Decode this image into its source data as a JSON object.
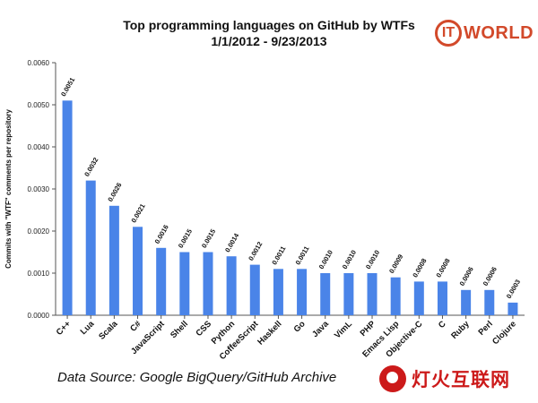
{
  "header": {
    "title_line1": "Top programming languages on GitHub by WTFs",
    "title_line2": "1/1/2012 - 9/23/2013"
  },
  "logo": {
    "mark": "IT",
    "text": "WORLD",
    "color": "#d2492a"
  },
  "footer": {
    "source": "Data Source: Google BigQuery/GitHub Archive"
  },
  "watermark": {
    "icon": "flame-logo-icon",
    "text": "灯火互联网",
    "color": "#cc1a1a"
  },
  "chart_data": {
    "type": "bar",
    "ylabel": "Commits with \"WTF\" comments per repository",
    "ylim": [
      0,
      0.006
    ],
    "yticks": [
      "0.0000",
      "0.0010",
      "0.0020",
      "0.0030",
      "0.0040",
      "0.0050",
      "0.0060"
    ],
    "grid": false,
    "bar_color": "#4a84e8",
    "categories": [
      "C++",
      "Lua",
      "Scala",
      "C#",
      "JavaScript",
      "Shell",
      "CSS",
      "Python",
      "CoffeeScript",
      "Haskell",
      "Go",
      "Java",
      "VimL",
      "PHP",
      "Emacs Lisp",
      "Objective-C",
      "C",
      "Ruby",
      "Perl",
      "Clojure"
    ],
    "values": [
      0.0051,
      0.0032,
      0.0026,
      0.0021,
      0.0016,
      0.0015,
      0.0015,
      0.0014,
      0.0012,
      0.0011,
      0.0011,
      0.001,
      0.001,
      0.001,
      0.0009,
      0.0008,
      0.0008,
      0.0006,
      0.0006,
      0.0003
    ],
    "labels": [
      "0.0051",
      "0.0032",
      "0.0026",
      "0.0021",
      "0.0016",
      "0.0015",
      "0.0015",
      "0.0014",
      "0.0012",
      "0.0011",
      "0.0011",
      "0.0010",
      "0.0010",
      "0.0010",
      "0.0009",
      "0.0008",
      "0.0008",
      "0.0006",
      "0.0006",
      "0.0003"
    ]
  }
}
